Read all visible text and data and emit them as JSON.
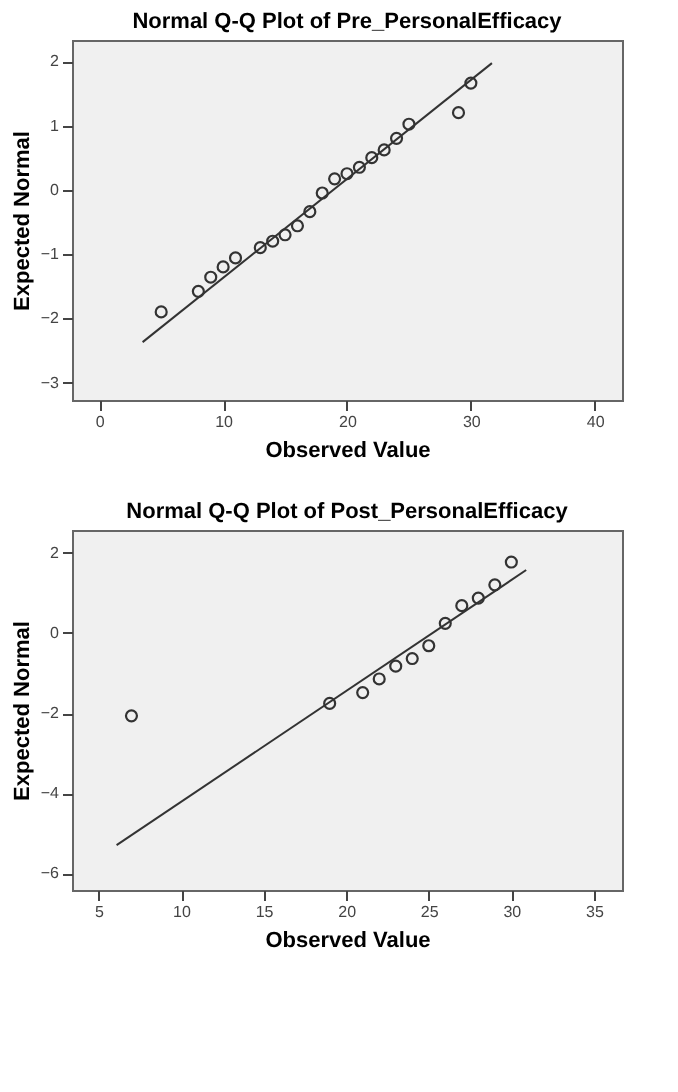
{
  "chart_data": [
    {
      "type": "scatter",
      "title": "Normal Q-Q Plot of Pre_PersonalEfficacy",
      "xlabel": "Observed Value",
      "ylabel": "Expected Normal",
      "xlim": [
        -2.2,
        42.2
      ],
      "ylim": [
        -3.27,
        2.33
      ],
      "xticks": [
        0,
        10,
        20,
        30,
        40
      ],
      "yticks": [
        -3,
        -2,
        -1,
        0,
        1,
        2
      ],
      "grid": false,
      "series": [
        {
          "marker": "circle",
          "color": "#333333",
          "x": [
            5,
            8,
            9,
            10,
            11,
            13,
            14,
            15,
            16,
            17,
            18,
            19,
            20,
            21,
            22,
            23,
            24,
            25,
            29,
            30
          ],
          "values": [
            -1.9,
            -1.58,
            -1.36,
            -1.2,
            -1.06,
            -0.9,
            -0.8,
            -0.7,
            -0.56,
            -0.34,
            -0.05,
            0.17,
            0.25,
            0.35,
            0.5,
            0.62,
            0.8,
            1.02,
            1.2,
            1.66
          ]
        },
        {
          "type": "line",
          "marker": "none",
          "line_style": "solid",
          "color": "#333333",
          "x": [
            3.5,
            31.7
          ],
          "values": [
            -2.37,
            1.97
          ]
        }
      ]
    },
    {
      "type": "scatter",
      "title": "Normal Q-Q Plot of Post_PersonalEfficacy",
      "xlabel": "Observed Value",
      "ylabel": "Expected Normal",
      "xlim": [
        3.4,
        36.7
      ],
      "ylim": [
        -6.42,
        2.57
      ],
      "xticks": [
        5,
        10,
        15,
        20,
        25,
        30,
        35
      ],
      "yticks": [
        -6,
        -4,
        -2,
        0,
        2
      ],
      "grid": false,
      "series": [
        {
          "marker": "circle",
          "color": "#333333",
          "x": [
            7,
            19,
            21,
            22,
            23,
            24,
            25,
            26,
            27,
            28,
            29,
            30
          ],
          "values": [
            -2.07,
            -1.76,
            -1.49,
            -1.15,
            -0.83,
            -0.64,
            -0.32,
            0.24,
            0.68,
            0.87,
            1.2,
            1.77
          ]
        },
        {
          "type": "line",
          "marker": "none",
          "line_style": "solid",
          "color": "#333333",
          "x": [
            6.1,
            30.9
          ],
          "values": [
            -5.3,
            1.57
          ]
        }
      ]
    }
  ]
}
